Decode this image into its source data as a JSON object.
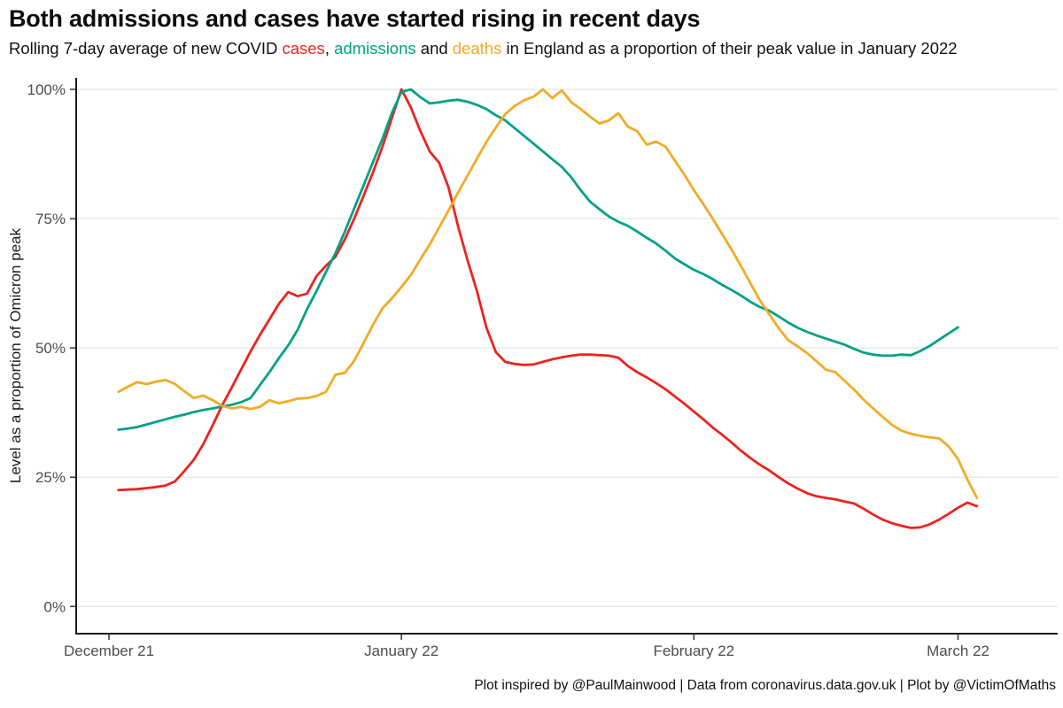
{
  "header": {
    "title": "Both admissions and cases have started rising in recent days",
    "subtitle": {
      "prefix": "Rolling 7-day average of new COVID ",
      "cases_word": "cases",
      "sep1": ", ",
      "admissions_word": "admissions",
      "sep2": " and ",
      "deaths_word": "deaths",
      "suffix": " in England as a proportion of their peak value in January 2022"
    }
  },
  "caption": "Plot inspired by @PaulMainwood | Data from coronavirus.data.gov.uk | Plot by @VictimOfMaths",
  "colors": {
    "cases": "#eb2420",
    "admissions": "#00a187",
    "deaths": "#f1ab25",
    "grid": "#e8e8e8",
    "axis": "#1a1a1a",
    "tick_label": "#4d4d4d"
  },
  "chart_data": {
    "type": "line",
    "title": "Both admissions and cases have started rising in recent days",
    "xlabel": "",
    "ylabel": "Level as a proportion of Omicron peak",
    "ylim": [
      0,
      100
    ],
    "grid": "horizontal-major-only",
    "legend": "colored words in subtitle",
    "y_tick_values": [
      0,
      25,
      50,
      75,
      100
    ],
    "y_tick_labels": [
      "0%",
      "25%",
      "50%",
      "75%",
      "100%"
    ],
    "x_tick_labels": [
      "December 21",
      "January 22",
      "February 22",
      "March 22"
    ],
    "x_tick_days": [
      0,
      31,
      62,
      90
    ],
    "x_unit": "days since 1 December 2021",
    "dates": [
      "Dec 2",
      "Dec 3",
      "Dec 4",
      "Dec 5",
      "Dec 6",
      "Dec 7",
      "Dec 8",
      "Dec 9",
      "Dec 10",
      "Dec 11",
      "Dec 12",
      "Dec 13",
      "Dec 14",
      "Dec 15",
      "Dec 16",
      "Dec 17",
      "Dec 18",
      "Dec 19",
      "Dec 20",
      "Dec 21",
      "Dec 22",
      "Dec 23",
      "Dec 24",
      "Dec 25",
      "Dec 26",
      "Dec 27",
      "Dec 28",
      "Dec 29",
      "Dec 30",
      "Dec 31",
      "Jan 1",
      "Jan 2",
      "Jan 3",
      "Jan 4",
      "Jan 5",
      "Jan 6",
      "Jan 7",
      "Jan 8",
      "Jan 9",
      "Jan 10",
      "Jan 11",
      "Jan 12",
      "Jan 13",
      "Jan 14",
      "Jan 15",
      "Jan 16",
      "Jan 17",
      "Jan 18",
      "Jan 19",
      "Jan 20",
      "Jan 21",
      "Jan 22",
      "Jan 23",
      "Jan 24",
      "Jan 25",
      "Jan 26",
      "Jan 27",
      "Jan 28",
      "Jan 29",
      "Jan 30",
      "Jan 31",
      "Feb 1",
      "Feb 2",
      "Feb 3",
      "Feb 4",
      "Feb 5",
      "Feb 6",
      "Feb 7",
      "Feb 8",
      "Feb 9",
      "Feb 10",
      "Feb 11",
      "Feb 12",
      "Feb 13",
      "Feb 14",
      "Feb 15",
      "Feb 16",
      "Feb 17",
      "Feb 18",
      "Feb 19",
      "Feb 20",
      "Feb 21",
      "Feb 22",
      "Feb 23",
      "Feb 24",
      "Feb 25",
      "Feb 26",
      "Feb 27",
      "Feb 28",
      "Mar 1",
      "Mar 2",
      "Mar 3"
    ],
    "series": [
      {
        "name": "cases",
        "color": "#eb2420",
        "values": [
          22.5,
          22.6,
          22.7,
          22.9,
          23.1,
          23.4,
          24.2,
          26.2,
          28.4,
          31.4,
          35.1,
          38.9,
          42.3,
          45.8,
          49.3,
          52.5,
          55.5,
          58.5,
          60.8,
          60.0,
          60.5,
          63.9,
          65.9,
          67.6,
          71.0,
          75.0,
          79.5,
          84.0,
          89.0,
          94.5,
          100.0,
          96.5,
          92.0,
          88.0,
          85.8,
          81.0,
          73.6,
          67.0,
          61.0,
          54.0,
          49.2,
          47.3,
          46.9,
          46.7,
          46.8,
          47.3,
          47.8,
          48.2,
          48.5,
          48.7,
          48.7,
          48.6,
          48.5,
          48.1,
          46.5,
          45.3,
          44.3,
          43.2,
          42.0,
          40.6,
          39.2,
          37.7,
          36.2,
          34.6,
          33.2,
          31.7,
          30.1,
          28.7,
          27.4,
          26.3,
          25.0,
          23.8,
          22.8,
          21.9,
          21.3,
          21.0,
          20.7,
          20.3,
          19.9,
          18.9,
          17.8,
          16.8,
          16.1,
          15.6,
          15.2,
          15.3,
          15.9,
          16.8,
          17.9,
          19.1,
          20.1,
          19.4
        ]
      },
      {
        "name": "admissions",
        "color": "#00a187",
        "values": [
          34.2,
          34.4,
          34.7,
          35.2,
          35.7,
          36.2,
          36.7,
          37.1,
          37.6,
          38.0,
          38.3,
          38.7,
          39.0,
          39.5,
          40.3,
          42.8,
          45.3,
          48.0,
          50.5,
          53.5,
          57.5,
          61.0,
          64.7,
          68.3,
          72.5,
          77.0,
          81.5,
          86.0,
          90.5,
          95.5,
          99.5,
          100.0,
          98.5,
          97.3,
          97.5,
          97.8,
          98.0,
          97.6,
          97.0,
          96.2,
          95.0,
          94.0,
          92.5,
          91.0,
          89.5,
          88.0,
          86.5,
          85.0,
          83.0,
          80.5,
          78.3,
          76.8,
          75.4,
          74.4,
          73.6,
          72.5,
          71.3,
          70.2,
          68.8,
          67.3,
          66.2,
          65.1,
          64.3,
          63.3,
          62.2,
          61.2,
          60.1,
          58.9,
          57.9,
          57.2,
          56.1,
          54.9,
          53.9,
          53.1,
          52.4,
          51.8,
          51.2,
          50.6,
          49.8,
          49.1,
          48.7,
          48.5,
          48.5,
          48.7,
          48.6,
          49.4,
          50.4,
          51.6,
          52.8,
          54.0,
          null,
          null
        ]
      },
      {
        "name": "deaths",
        "color": "#f1ab25",
        "values": [
          41.5,
          42.5,
          43.4,
          43.0,
          43.5,
          43.8,
          43.0,
          41.6,
          40.3,
          40.8,
          39.9,
          38.8,
          38.3,
          38.6,
          38.2,
          38.6,
          39.9,
          39.3,
          39.7,
          40.2,
          40.3,
          40.7,
          41.5,
          44.8,
          45.2,
          47.5,
          51.0,
          54.5,
          57.7,
          59.6,
          61.8,
          64.1,
          67.1,
          70.0,
          73.3,
          76.6,
          80.0,
          83.3,
          86.6,
          89.8,
          92.6,
          95.2,
          96.8,
          97.9,
          98.6,
          100.0,
          98.3,
          99.8,
          97.5,
          96.2,
          94.7,
          93.4,
          94.0,
          95.4,
          92.8,
          91.9,
          89.3,
          89.9,
          88.9,
          86.2,
          83.5,
          80.5,
          77.8,
          75.0,
          72.0,
          69.0,
          65.8,
          62.5,
          59.2,
          56.5,
          53.8,
          51.5,
          50.3,
          49.0,
          47.4,
          45.8,
          45.3,
          43.6,
          41.9,
          40.0,
          38.3,
          36.7,
          35.1,
          34.0,
          33.4,
          33.0,
          32.7,
          32.5,
          31.0,
          28.5,
          24.5,
          21.0
        ]
      }
    ]
  }
}
